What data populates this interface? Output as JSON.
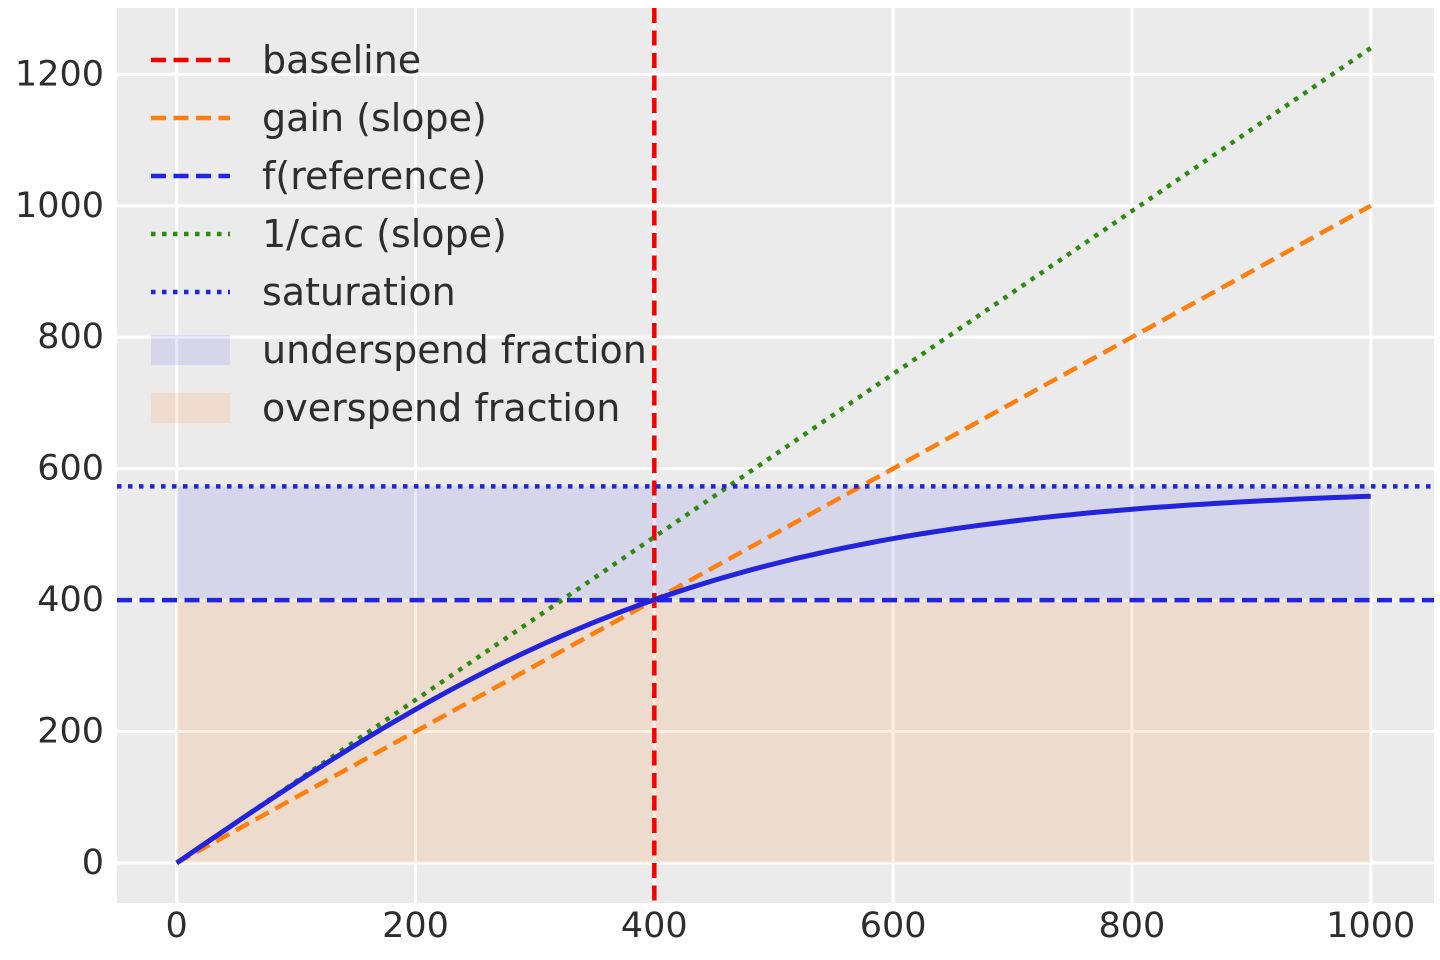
{
  "chart_data": {
    "type": "line",
    "title": "",
    "xlabel": "",
    "ylabel": "",
    "xlim": [
      -50,
      1053
    ],
    "ylim": [
      -61,
      1301
    ],
    "grid": true,
    "legend_position": "upper-left",
    "legend_frame": false,
    "x_ticks": {
      "values": [
        0,
        200,
        400,
        600,
        800,
        1000
      ],
      "labels": [
        "0",
        "200",
        "400",
        "600",
        "800",
        "1000"
      ]
    },
    "y_ticks": {
      "values": [
        0,
        200,
        400,
        600,
        800,
        1000,
        1200
      ],
      "labels": [
        "0",
        "200",
        "400",
        "600",
        "800",
        "1000",
        "1200"
      ]
    },
    "colors": {
      "figure_bg": "#ffffff",
      "plot_bg": "#ebebeb",
      "grid": "#ffffff",
      "text": "#2d2d2d",
      "baseline_red": "#f40000",
      "gain_orange": "#ff7f0e",
      "blue": "#2323dc",
      "cac_green": "#2e8b11",
      "underspend_fill": "rgba(34,34,221,0.10)",
      "overspend_fill": "rgba(255,127,14,0.13)"
    },
    "key_values": {
      "baseline_spend": 400,
      "f_reference": 400,
      "gain_slope": 1.0,
      "inv_cac_slope": 1.24,
      "saturation": 573,
      "response_at_1000": 558
    },
    "series": [
      {
        "id": "underspend-fraction",
        "label": "underspend fraction",
        "kind": "fill",
        "x_range": [
          0,
          1000
        ],
        "y_range": [
          400,
          573
        ],
        "color_key": "underspend_fill"
      },
      {
        "id": "overspend-fraction",
        "label": "overspend fraction",
        "kind": "fill",
        "x_range": [
          0,
          1000
        ],
        "y_range": [
          0,
          400
        ],
        "color_key": "overspend_fill"
      },
      {
        "id": "baseline",
        "label": "baseline",
        "kind": "vline",
        "x": 400,
        "style": "dashed",
        "color_key": "baseline_red"
      },
      {
        "id": "gain-slope",
        "label": "gain (slope)",
        "kind": "segment",
        "x": [
          0,
          1000
        ],
        "y": [
          0,
          1000
        ],
        "slope": 1.0,
        "style": "dashed",
        "color_key": "gain_orange"
      },
      {
        "id": "f-reference",
        "label": "f(reference)",
        "kind": "hline",
        "y": 400,
        "style": "dashed",
        "color_key": "blue"
      },
      {
        "id": "inv-cac-slope",
        "label": "1/cac (slope)",
        "kind": "segment",
        "x": [
          0,
          1000
        ],
        "y": [
          0,
          1240
        ],
        "slope": 1.24,
        "style": "dotted",
        "color_key": "cac_green"
      },
      {
        "id": "saturation",
        "label": "saturation",
        "kind": "hline",
        "y": 573,
        "style": "dotted",
        "color_key": "blue"
      },
      {
        "id": "response-curve",
        "label": "",
        "kind": "curve",
        "formula": "f(x) = saturation * tanh(initial_slope * x / saturation)",
        "saturation": 573,
        "initial_slope": 1.24,
        "x_range": [
          0,
          1000
        ],
        "style": "solid",
        "color_key": "blue",
        "points": [
          [
            0,
            0
          ],
          [
            100,
            122
          ],
          [
            200,
            234
          ],
          [
            300,
            327
          ],
          [
            400,
            401
          ],
          [
            500,
            455
          ],
          [
            600,
            494
          ],
          [
            700,
            520
          ],
          [
            800,
            538
          ],
          [
            900,
            550
          ],
          [
            1000,
            558
          ]
        ]
      }
    ],
    "legend": {
      "items": [
        {
          "label": "baseline",
          "swatch": "line",
          "style": "dashed",
          "color_key": "baseline_red"
        },
        {
          "label": "gain (slope)",
          "swatch": "line",
          "style": "dashed",
          "color_key": "gain_orange"
        },
        {
          "label": "f(reference)",
          "swatch": "line",
          "style": "dashed",
          "color_key": "blue"
        },
        {
          "label": "1/cac (slope)",
          "swatch": "line",
          "style": "dotted",
          "color_key": "cac_green"
        },
        {
          "label": "saturation",
          "swatch": "line",
          "style": "dotted",
          "color_key": "blue"
        },
        {
          "label": "underspend fraction",
          "swatch": "patch",
          "style": "solid",
          "color_key": "underspend_fill"
        },
        {
          "label": "overspend fraction",
          "swatch": "patch",
          "style": "solid",
          "color_key": "overspend_fill"
        }
      ]
    }
  }
}
